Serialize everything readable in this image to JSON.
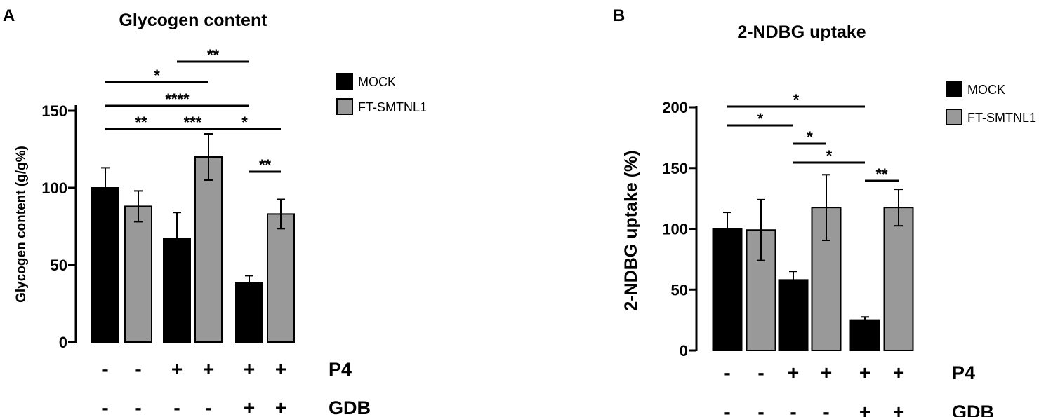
{
  "legend": [
    {
      "label": "MOCK",
      "color": "#000000"
    },
    {
      "label": "FT-SMTNL1",
      "color": "#999999"
    }
  ],
  "conditions": {
    "p4": {
      "label": "P4",
      "signs": [
        "-",
        "-",
        "+",
        "+",
        "+",
        "+"
      ]
    },
    "gdb": {
      "label": "GDB",
      "signs": [
        "-",
        "-",
        "-",
        "-",
        "+",
        "+"
      ]
    }
  },
  "chart_data": [
    {
      "panel": "A",
      "type": "bar",
      "title": "Glycogen content",
      "ylabel": "Glycogen content (g/g%)",
      "xlabel": "",
      "ylim": [
        0,
        150
      ],
      "yticks": [
        0,
        50,
        100,
        150
      ],
      "grid": false,
      "legend_position": "right",
      "bars": [
        {
          "series": "MOCK",
          "value": 100,
          "error": 13
        },
        {
          "series": "FT-SMTNL1",
          "value": 88,
          "error": 10
        },
        {
          "series": "MOCK",
          "value": 67,
          "error": 17
        },
        {
          "series": "FT-SMTNL1",
          "value": 120,
          "error": 15
        },
        {
          "series": "MOCK",
          "value": 38.5,
          "error": 4.5
        },
        {
          "series": "FT-SMTNL1",
          "value": 83,
          "error": 9.5
        }
      ],
      "comparisons": [
        {
          "from": 3,
          "to": 5,
          "label": "**"
        },
        {
          "from": 1,
          "to": 4,
          "label": "*"
        },
        {
          "from": 1,
          "to": 5,
          "label": "****"
        },
        {
          "from": 1,
          "to": 3,
          "label": "**"
        },
        {
          "from": 3,
          "to": 4,
          "label": "***"
        },
        {
          "from": 4,
          "to": 6,
          "label": "*"
        },
        {
          "from": 5,
          "to": 6,
          "label": "**"
        }
      ]
    },
    {
      "panel": "B",
      "type": "bar",
      "title": "2-NDBG uptake",
      "ylabel": "2-NDBG uptake (%)",
      "xlabel": "",
      "ylim": [
        0,
        200
      ],
      "yticks": [
        0,
        50,
        100,
        150,
        200
      ],
      "grid": false,
      "legend_position": "top-right",
      "bars": [
        {
          "series": "MOCK",
          "value": 100,
          "error": 13.5
        },
        {
          "series": "FT-SMTNL1",
          "value": 99,
          "error": 25
        },
        {
          "series": "MOCK",
          "value": 58,
          "error": 7
        },
        {
          "series": "FT-SMTNL1",
          "value": 117.5,
          "error": 27
        },
        {
          "series": "MOCK",
          "value": 25,
          "error": 2.5
        },
        {
          "series": "FT-SMTNL1",
          "value": 117.5,
          "error": 15
        }
      ],
      "comparisons": [
        {
          "from": 1,
          "to": 5,
          "label": "*"
        },
        {
          "from": 1,
          "to": 3,
          "label": "*"
        },
        {
          "from": 3,
          "to": 4,
          "label": "*"
        },
        {
          "from": 3,
          "to": 5,
          "label": "*"
        },
        {
          "from": 5,
          "to": 6,
          "label": "**"
        }
      ]
    }
  ]
}
